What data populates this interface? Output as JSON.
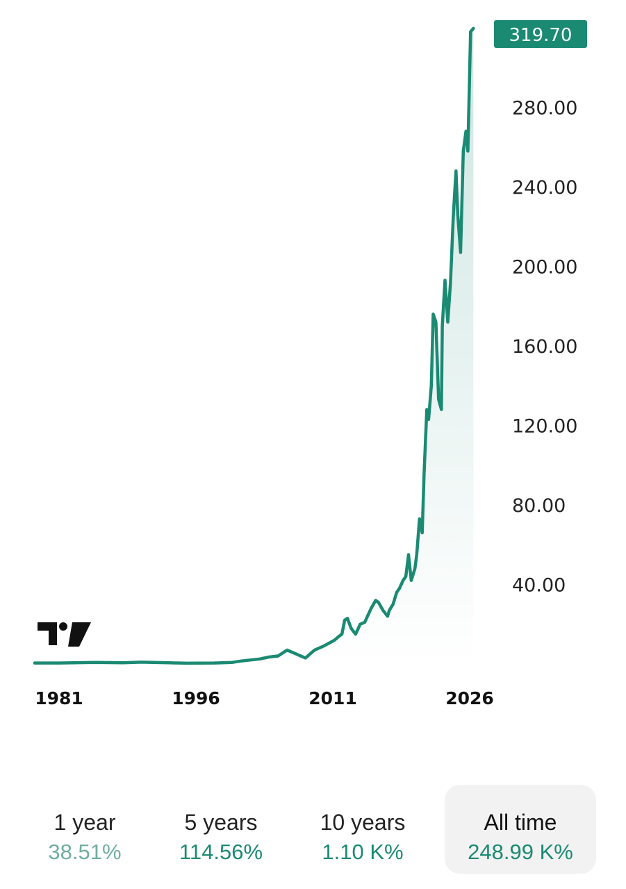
{
  "chart_data": {
    "type": "area",
    "title": "",
    "xlabel": "",
    "ylabel": "",
    "x_ticks": [
      "1981",
      "1996",
      "2011",
      "2026"
    ],
    "y_ticks": [
      "40.00",
      "80.00",
      "120.00",
      "160.00",
      "200.00",
      "240.00",
      "280.00"
    ],
    "ylim": [
      0,
      320
    ],
    "xlim": [
      1981,
      2026
    ],
    "last_value_label": "319.70",
    "line_color": "#1b8a73",
    "fill_color": "#1b8a73",
    "series": [
      {
        "x": [
          1981,
          1985,
          1988,
          1990,
          1993,
          1995,
          1998,
          2000,
          2001,
          2003,
          2004,
          2005,
          2006,
          2007,
          2008,
          2008.5,
          2009,
          2010,
          2010.8,
          2011.2,
          2011.7,
          2012,
          2012.3,
          2012.6,
          2013,
          2013.5,
          2014,
          2014.5,
          2014.8,
          2015.2,
          2015.7,
          2016,
          2016.5,
          2017,
          2017.2,
          2017.6,
          2018,
          2018.3,
          2018.7,
          2019,
          2019.3,
          2019.6,
          2020,
          2020.2,
          2020.5,
          2020.8,
          2021,
          2021.3,
          2021.5,
          2021.8,
          2022,
          2022.3,
          2022.6,
          2022.9,
          2023,
          2023.3,
          2023.6,
          2023.9,
          2024.2,
          2024.5,
          2024.7,
          2025,
          2025.3,
          2025.6,
          2025.8,
          2026.1,
          2026.4
        ],
        "values": [
          0.5,
          0.8,
          0.6,
          0.9,
          0.6,
          0.4,
          0.5,
          0.8,
          1.5,
          2.5,
          3.5,
          4,
          7,
          5,
          3,
          5,
          7,
          9,
          11,
          12,
          14,
          15,
          22,
          23,
          18,
          15,
          20,
          21,
          24,
          28,
          32,
          31,
          27,
          24,
          27,
          30,
          36,
          38,
          42,
          44,
          55,
          42,
          48,
          55,
          73,
          66,
          95,
          128,
          123,
          140,
          176,
          172,
          133,
          128,
          170,
          193,
          172,
          192,
          225,
          248,
          226,
          207,
          258,
          268,
          258,
          318,
          319.7
        ]
      }
    ]
  },
  "periods": [
    {
      "label": "1 year",
      "value": "38.51%"
    },
    {
      "label": "5 years",
      "value": "114.56%"
    },
    {
      "label": "10 years",
      "value": "1.10 K%"
    },
    {
      "label": "All time",
      "value": "248.99 K%"
    }
  ],
  "icons": {
    "logo": "tradingview-logo"
  }
}
